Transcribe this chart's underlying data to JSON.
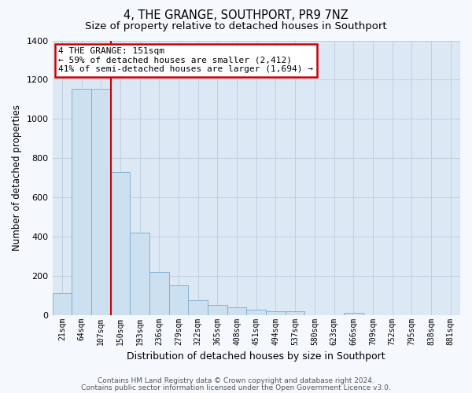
{
  "title": "4, THE GRANGE, SOUTHPORT, PR9 7NZ",
  "subtitle": "Size of property relative to detached houses in Southport",
  "xlabel": "Distribution of detached houses by size in Southport",
  "ylabel": "Number of detached properties",
  "bar_labels": [
    "21sqm",
    "64sqm",
    "107sqm",
    "150sqm",
    "193sqm",
    "236sqm",
    "279sqm",
    "322sqm",
    "365sqm",
    "408sqm",
    "451sqm",
    "494sqm",
    "537sqm",
    "580sqm",
    "623sqm",
    "666sqm",
    "709sqm",
    "752sqm",
    "795sqm",
    "838sqm",
    "881sqm"
  ],
  "bar_values": [
    110,
    1155,
    1155,
    730,
    420,
    220,
    150,
    75,
    50,
    40,
    25,
    20,
    20,
    0,
    0,
    10,
    0,
    0,
    0,
    0,
    0
  ],
  "bar_color": "#cce0f0",
  "bar_edge_color": "#7aadcc",
  "ylim": [
    0,
    1400
  ],
  "yticks": [
    0,
    200,
    400,
    600,
    800,
    1000,
    1200,
    1400
  ],
  "red_line_index": 2.5,
  "annotation_title": "4 THE GRANGE: 151sqm",
  "annotation_line1": "← 59% of detached houses are smaller (2,412)",
  "annotation_line2": "41% of semi-detached houses are larger (1,694) →",
  "footer1": "Contains HM Land Registry data © Crown copyright and database right 2024.",
  "footer2": "Contains public sector information licensed under the Open Government Licence v3.0.",
  "fig_bg_color": "#f5f8fd",
  "axes_bg_color": "#dde8f5",
  "grid_color": "#c0cfe0",
  "title_fontsize": 10.5,
  "subtitle_fontsize": 9.5,
  "annotation_box_facecolor": "#ffffff",
  "annotation_box_edgecolor": "#cc0000",
  "red_line_color": "#cc0000",
  "footer_color": "#555555"
}
